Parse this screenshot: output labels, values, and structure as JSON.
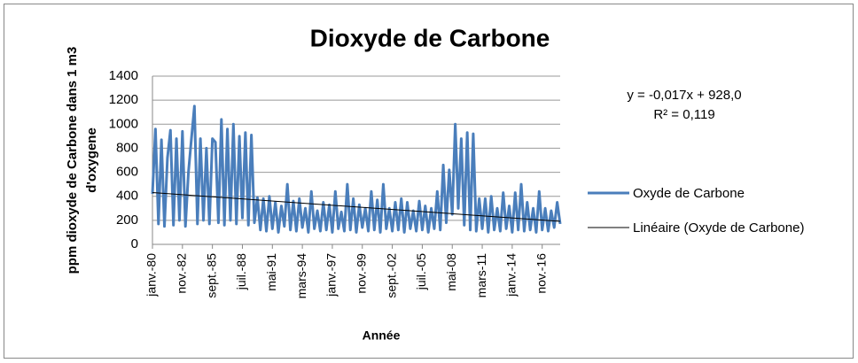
{
  "chart_data": {
    "type": "line",
    "title": "Dioxyde de Carbone",
    "y_label": "ppm dioxyde de Carbone dans 1 m3 d'oxygene",
    "x_label": "Année",
    "annotations": [
      "y = -0,017x + 928,0",
      "R² = 0,119"
    ],
    "ylim": [
      0,
      1400
    ],
    "yticks": [
      0,
      200,
      400,
      600,
      800,
      1000,
      1200,
      1400
    ],
    "grid": true,
    "categories": [
      "janv.-80",
      null,
      null,
      null,
      null,
      null,
      null,
      null,
      null,
      null,
      "nov.-82",
      null,
      null,
      null,
      null,
      null,
      null,
      null,
      null,
      null,
      "sept.-85",
      null,
      null,
      null,
      null,
      null,
      null,
      null,
      null,
      null,
      "juil.-88",
      null,
      null,
      null,
      null,
      null,
      null,
      null,
      null,
      null,
      "mai-91",
      null,
      null,
      null,
      null,
      null,
      null,
      null,
      null,
      null,
      "mars-94",
      null,
      null,
      null,
      null,
      null,
      null,
      null,
      null,
      null,
      "janv.-97",
      null,
      null,
      null,
      null,
      null,
      null,
      null,
      null,
      null,
      "nov.-99",
      null,
      null,
      null,
      null,
      null,
      null,
      null,
      null,
      null,
      "sept.-02",
      null,
      null,
      null,
      null,
      null,
      null,
      null,
      null,
      null,
      "juil.-05",
      null,
      null,
      null,
      null,
      null,
      null,
      null,
      null,
      null,
      "mai-08",
      null,
      null,
      null,
      null,
      null,
      null,
      null,
      null,
      null,
      "mars-11",
      null,
      null,
      null,
      null,
      null,
      null,
      null,
      null,
      null,
      "janv.-14",
      null,
      null,
      null,
      null,
      null,
      null,
      null,
      null,
      null,
      "nov.-16",
      null,
      null,
      null,
      null,
      null,
      null
    ],
    "series": [
      {
        "name": "Oxyde de Carbone",
        "color": "#4a7ebb",
        "values": [
          420,
          960,
          170,
          870,
          150,
          720,
          950,
          160,
          880,
          200,
          940,
          150,
          600,
          880,
          1150,
          170,
          880,
          200,
          800,
          170,
          880,
          850,
          180,
          1040,
          160,
          960,
          200,
          1000,
          170,
          900,
          220,
          930,
          160,
          910,
          180,
          390,
          120,
          380,
          110,
          400,
          130,
          350,
          100,
          320,
          150,
          500,
          120,
          360,
          110,
          380,
          140,
          300,
          100,
          440,
          130,
          280,
          110,
          350,
          120,
          330,
          100,
          440,
          130,
          270,
          110,
          500,
          120,
          380,
          100,
          330,
          140,
          300,
          110,
          440,
          120,
          370,
          100,
          500,
          130,
          300,
          110,
          350,
          120,
          380,
          100,
          350,
          130,
          280,
          110,
          360,
          120,
          320,
          100,
          300,
          130,
          440,
          120,
          660,
          180,
          620,
          250,
          1000,
          300,
          880,
          160,
          930,
          120,
          920,
          110,
          380,
          130,
          380,
          100,
          400,
          120,
          300,
          110,
          430,
          130,
          320,
          100,
          430,
          120,
          500,
          110,
          350,
          120,
          300,
          100,
          440,
          120,
          300,
          110,
          280,
          140,
          350,
          170
        ]
      }
    ],
    "trendline": {
      "name": "Linéaire (Oxyde de Carbone)",
      "color": "#000000",
      "start": 431,
      "end": 192
    }
  }
}
